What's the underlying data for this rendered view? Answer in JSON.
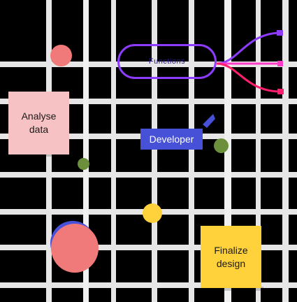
{
  "diagram": {
    "mind_map_root": {
      "label": "Functions",
      "outline_color": "#8d3cff"
    },
    "branches": [
      {
        "color": "#8d3cff"
      },
      {
        "color": "#ff3cc8"
      },
      {
        "color": "#ff1f6e"
      }
    ],
    "sticky_notes": [
      {
        "text": "Analyse\ndata",
        "color": "#f7c2c4"
      },
      {
        "text": "Finalize\ndesign",
        "color": "#ffd13a"
      }
    ],
    "tag": {
      "text": "Developer",
      "color": "#4651d8"
    },
    "dots": [
      {
        "color": "#f07a7a"
      },
      {
        "color": "#6b8f3a"
      },
      {
        "color": "#6b8f3a"
      },
      {
        "color": "#ffd13a"
      },
      {
        "color": "#f07a7a"
      },
      {
        "color": "#4651d8"
      }
    ],
    "grid_color": "#e6e6e6"
  }
}
